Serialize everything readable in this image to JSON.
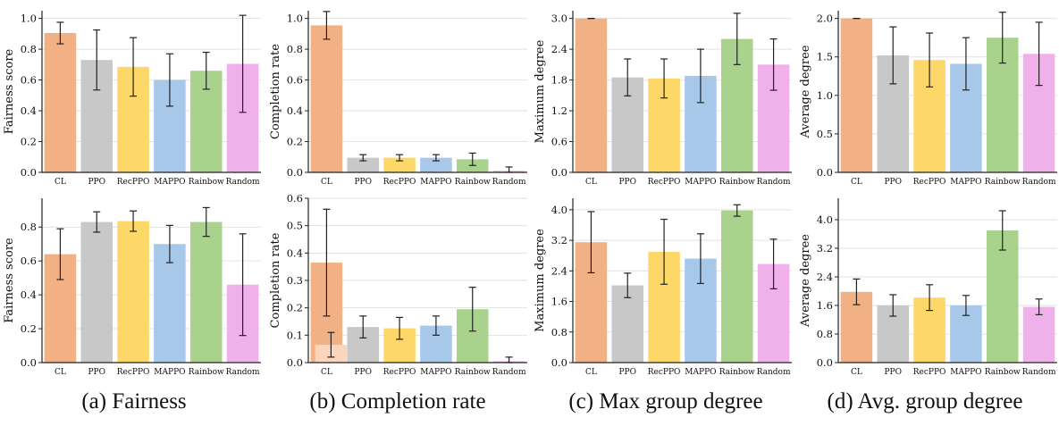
{
  "colors": {
    "CL": "#f2b185",
    "CL_light": "#fbd6bd",
    "PPO": "#c8c8c8",
    "RecPPO": "#fdd868",
    "MAPPO": "#a7c8e8",
    "Rainbow": "#a9d38c",
    "Random": "#f0b0ea",
    "grid": "#e2e2e2",
    "axis": "#222222",
    "error": "#222222"
  },
  "captions": [
    "(a) Fairness",
    "(b) Completion rate",
    "(c) Max group degree",
    "(d) Avg. group degree"
  ],
  "chart_data": [
    {
      "id": "top-fairness",
      "type": "bar",
      "categories": [
        "CL",
        "PPO",
        "RecPPO",
        "MAPPO",
        "Rainbow",
        "Random"
      ],
      "values": [
        0.905,
        0.73,
        0.685,
        0.6,
        0.66,
        0.705
      ],
      "errors": [
        0.07,
        0.195,
        0.19,
        0.17,
        0.12,
        0.315
      ],
      "ylabel": "Fairness score",
      "ylim": [
        0,
        1.05
      ],
      "yticks": [
        "0.0",
        "0.2",
        "0.4",
        "0.6",
        "0.8",
        "1.0"
      ],
      "grid": true
    },
    {
      "id": "top-completion",
      "type": "bar",
      "categories": [
        "CL",
        "PPO",
        "RecPPO",
        "MAPPO",
        "Rainbow",
        "Random"
      ],
      "values": [
        0.955,
        0.095,
        0.095,
        0.095,
        0.085,
        0.01
      ],
      "errors": [
        0.09,
        0.02,
        0.02,
        0.02,
        0.04,
        0.025
      ],
      "ylabel": "Completion rate",
      "ylim": [
        0,
        1.05
      ],
      "yticks": [
        "0.0",
        "0.2",
        "0.4",
        "0.6",
        "0.8",
        "1.0"
      ],
      "grid": true
    },
    {
      "id": "top-maxdeg",
      "type": "bar",
      "categories": [
        "CL",
        "PPO",
        "RecPPO",
        "MAPPO",
        "Rainbow",
        "Random"
      ],
      "values": [
        3.0,
        1.85,
        1.83,
        1.88,
        2.6,
        2.1
      ],
      "errors": [
        0.0,
        0.36,
        0.38,
        0.52,
        0.5,
        0.5
      ],
      "ylabel": "Maximum degree",
      "ylim": [
        0,
        3.15
      ],
      "yticks": [
        "0.0",
        "0.6",
        "1.2",
        "1.8",
        "2.4",
        "3.0"
      ],
      "grid": true
    },
    {
      "id": "top-avgdeg",
      "type": "bar",
      "categories": [
        "CL",
        "PPO",
        "RecPPO",
        "MAPPO",
        "Rainbow",
        "Random"
      ],
      "values": [
        2.0,
        1.52,
        1.46,
        1.41,
        1.75,
        1.54
      ],
      "errors": [
        0.0,
        0.37,
        0.35,
        0.34,
        0.33,
        0.41
      ],
      "ylabel": "Average degree",
      "ylim": [
        0,
        2.1
      ],
      "yticks": [
        "0.0",
        "0.5",
        "1.0",
        "1.5",
        "2.0"
      ],
      "grid": true
    },
    {
      "id": "bottom-fairness",
      "type": "bar",
      "categories": [
        "CL",
        "PPO",
        "RecPPO",
        "MAPPO",
        "Rainbow",
        "Random"
      ],
      "values": [
        0.64,
        0.83,
        0.835,
        0.7,
        0.83,
        0.46
      ],
      "errors": [
        0.15,
        0.06,
        0.06,
        0.11,
        0.085,
        0.3
      ],
      "ylabel": "Fairness score",
      "ylim": [
        0,
        0.97
      ],
      "yticks": [
        "0.0",
        "0.2",
        "0.4",
        "0.6",
        "0.8"
      ],
      "grid": true
    },
    {
      "id": "bottom-completion",
      "type": "bar",
      "categories": [
        "CL",
        "PPO",
        "RecPPO",
        "MAPPO",
        "Rainbow",
        "Random"
      ],
      "values": [
        0.365,
        0.13,
        0.125,
        0.135,
        0.195,
        0.005
      ],
      "errors": [
        0.195,
        0.04,
        0.04,
        0.035,
        0.08,
        0.015
      ],
      "overlay": {
        "category": "CL",
        "value": 0.065,
        "error": 0.045
      },
      "ylabel": "Completion rate",
      "ylim": [
        0,
        0.6
      ],
      "yticks": [
        "0.0",
        "0.1",
        "0.2",
        "0.3",
        "0.4",
        "0.5",
        "0.6"
      ],
      "grid": true
    },
    {
      "id": "bottom-maxdeg",
      "type": "bar",
      "categories": [
        "CL",
        "PPO",
        "RecPPO",
        "MAPPO",
        "Rainbow",
        "Random"
      ],
      "values": [
        3.15,
        2.02,
        2.9,
        2.72,
        3.98,
        2.58
      ],
      "errors": [
        0.8,
        0.32,
        0.85,
        0.65,
        0.15,
        0.65
      ],
      "ylabel": "Maximum degree",
      "ylim": [
        0,
        4.3
      ],
      "yticks": [
        "0.0",
        "0.8",
        "1.6",
        "2.4",
        "3.2",
        "4.0"
      ],
      "grid": true
    },
    {
      "id": "bottom-avgdeg",
      "type": "bar",
      "categories": [
        "CL",
        "PPO",
        "RecPPO",
        "MAPPO",
        "Rainbow",
        "Random"
      ],
      "values": [
        1.98,
        1.6,
        1.82,
        1.6,
        3.7,
        1.56
      ],
      "errors": [
        0.36,
        0.3,
        0.36,
        0.28,
        0.55,
        0.22
      ],
      "ylabel": "Average degree",
      "ylim": [
        0,
        4.6
      ],
      "yticks": [
        "0.0",
        "0.8",
        "1.6",
        "2.4",
        "3.2",
        "4.0"
      ],
      "grid": true
    }
  ]
}
